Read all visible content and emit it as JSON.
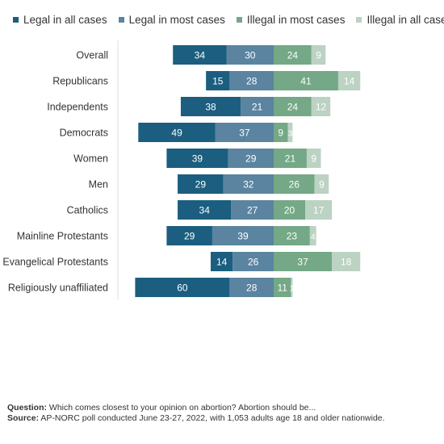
{
  "chart_data": {
    "type": "bar",
    "stacked": true,
    "orientation": "horizontal",
    "alignment": "diverging",
    "categories": [
      "Overall",
      "Republicans",
      "Independents",
      "Democrats",
      "Women",
      "Men",
      "Catholics",
      "Mainline Protestants",
      "Evangelical Protestants",
      "Religiously unaffiliated"
    ],
    "groups": [
      [
        0
      ],
      [
        1,
        2,
        3
      ],
      [
        4,
        5
      ],
      [
        6,
        7,
        8,
        9
      ]
    ],
    "series": [
      {
        "name": "Legal in all cases",
        "color": "#1b5e80",
        "values": [
          34,
          15,
          38,
          49,
          39,
          29,
          34,
          29,
          14,
          60
        ]
      },
      {
        "name": "Legal in most cases",
        "color": "#5a84a0",
        "values": [
          30,
          28,
          21,
          37,
          29,
          32,
          27,
          39,
          26,
          28
        ]
      },
      {
        "name": "Illegal in most cases",
        "color": "#74a886",
        "values": [
          24,
          41,
          24,
          9,
          21,
          26,
          20,
          23,
          37,
          11
        ]
      },
      {
        "name": "Illegal in all cases",
        "color": "#bcd2c2",
        "values": [
          9,
          14,
          12,
          3,
          9,
          9,
          17,
          4,
          18,
          1
        ]
      }
    ],
    "legend_position": "top",
    "grid": false
  },
  "footnote": {
    "question_label": "Question:",
    "question_text": " Which comes closest to your opinion on abortion? Abortion should be...",
    "source_label": "Source:",
    "source_text": " AP-NORC poll conducted June 23-27, 2022, with 1,053 adults age 18 and older nationwide."
  }
}
